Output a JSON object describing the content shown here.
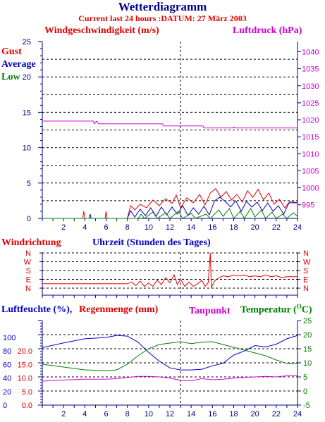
{
  "header": {
    "title": "Wetterdiagramm",
    "subtitle": "Current last 24 hours :DATUM: 27 März 2003"
  },
  "colors": {
    "title": "#00008b",
    "red": "#e00000",
    "blue": "#0000c8",
    "green": "#008000",
    "magenta": "#d000d0",
    "axis": "#000080",
    "grid": "#000000"
  },
  "chart_data": [
    {
      "type": "line",
      "title": "",
      "labels": {
        "left": "Windgeschwindigkeit (m/s)",
        "right": "Luftdruck (hPa)",
        "gust": "Gust",
        "average": "Average",
        "low": "Low"
      },
      "x": {
        "range": [
          0,
          24
        ],
        "ticks": [
          2,
          4,
          6,
          8,
          10,
          12,
          14,
          16,
          18,
          20,
          22,
          24
        ]
      },
      "y_left": {
        "range": [
          0,
          25
        ],
        "ticks": [
          0,
          5,
          10,
          15,
          20,
          25
        ]
      },
      "y_right": {
        "range": [
          991,
          1043
        ],
        "ticks": [
          995,
          1000,
          1005,
          1010,
          1015,
          1020,
          1025,
          1030,
          1035,
          1040
        ]
      },
      "series": [
        {
          "name": "Gust",
          "color": "#e00000",
          "axis": "left",
          "points": [
            [
              0,
              0
            ],
            [
              3.8,
              0
            ],
            [
              3.9,
              1.0
            ],
            [
              4.0,
              0
            ],
            [
              5.9,
              0
            ],
            [
              6.0,
              1.0
            ],
            [
              6.1,
              0
            ],
            [
              8.0,
              0
            ],
            [
              8.3,
              1.8
            ],
            [
              8.7,
              1.2
            ],
            [
              9.2,
              2.0
            ],
            [
              9.8,
              1.5
            ],
            [
              10.4,
              2.6
            ],
            [
              11.0,
              1.8
            ],
            [
              11.6,
              2.8
            ],
            [
              12.2,
              2.1
            ],
            [
              12.6,
              3.3
            ],
            [
              13.0,
              1.5
            ],
            [
              13.6,
              2.9
            ],
            [
              14.2,
              2.2
            ],
            [
              14.8,
              3.4
            ],
            [
              15.3,
              1.9
            ],
            [
              15.8,
              3.6
            ],
            [
              16.3,
              4.2
            ],
            [
              16.8,
              3.0
            ],
            [
              17.3,
              3.8
            ],
            [
              17.8,
              2.6
            ],
            [
              18.3,
              3.4
            ],
            [
              18.8,
              2.3
            ],
            [
              19.3,
              3.9
            ],
            [
              19.8,
              3.0
            ],
            [
              20.3,
              4.1
            ],
            [
              20.8,
              2.6
            ],
            [
              21.3,
              3.6
            ],
            [
              21.8,
              2.0
            ],
            [
              22.3,
              2.7
            ],
            [
              22.8,
              1.5
            ],
            [
              23.3,
              2.4
            ],
            [
              24.0,
              2.2
            ]
          ]
        },
        {
          "name": "Average",
          "color": "#0000c8",
          "axis": "left",
          "points": [
            [
              0,
              0
            ],
            [
              4.4,
              0
            ],
            [
              4.5,
              0.6
            ],
            [
              4.6,
              0
            ],
            [
              8.0,
              0
            ],
            [
              8.3,
              1.1
            ],
            [
              8.7,
              0.2
            ],
            [
              9.2,
              1.3
            ],
            [
              9.7,
              0.4
            ],
            [
              10.2,
              1.5
            ],
            [
              10.7,
              0.3
            ],
            [
              11.2,
              1.6
            ],
            [
              11.7,
              0.5
            ],
            [
              12.2,
              1.6
            ],
            [
              12.7,
              0.6
            ],
            [
              13.2,
              1.8
            ],
            [
              13.7,
              0.4
            ],
            [
              14.2,
              1.5
            ],
            [
              14.7,
              0.6
            ],
            [
              15.2,
              1.7
            ],
            [
              15.7,
              0.5
            ],
            [
              16.2,
              2.5
            ],
            [
              16.7,
              3.0
            ],
            [
              17.2,
              2.4
            ],
            [
              17.7,
              1.6
            ],
            [
              18.2,
              2.5
            ],
            [
              18.7,
              1.0
            ],
            [
              19.2,
              2.4
            ],
            [
              19.7,
              1.6
            ],
            [
              20.2,
              2.3
            ],
            [
              20.7,
              1.1
            ],
            [
              21.2,
              2.2
            ],
            [
              21.7,
              1.0
            ],
            [
              22.2,
              1.8
            ],
            [
              22.7,
              0.6
            ],
            [
              23.2,
              2.2
            ],
            [
              24.0,
              2.2
            ]
          ]
        },
        {
          "name": "Low",
          "color": "#008000",
          "axis": "left",
          "points": [
            [
              0,
              0
            ],
            [
              9.0,
              0
            ],
            [
              9.3,
              0.6
            ],
            [
              9.6,
              0
            ],
            [
              10.4,
              0.9
            ],
            [
              10.8,
              0
            ],
            [
              11.6,
              0.8
            ],
            [
              12.0,
              0
            ],
            [
              12.8,
              1.0
            ],
            [
              13.2,
              0
            ],
            [
              14.0,
              0.7
            ],
            [
              14.4,
              0
            ],
            [
              15.4,
              0.6
            ],
            [
              15.8,
              0
            ],
            [
              16.6,
              1.2
            ],
            [
              17.0,
              0.3
            ],
            [
              17.6,
              1.4
            ],
            [
              18.0,
              0
            ],
            [
              18.6,
              1.0
            ],
            [
              19.0,
              0
            ],
            [
              19.6,
              1.4
            ],
            [
              20.0,
              0.2
            ],
            [
              20.6,
              1.2
            ],
            [
              21.0,
              0
            ],
            [
              21.6,
              0.9
            ],
            [
              22.0,
              0
            ],
            [
              22.6,
              0.6
            ],
            [
              23.0,
              0
            ],
            [
              23.6,
              0.8
            ],
            [
              24.0,
              0.3
            ]
          ]
        },
        {
          "name": "Luftdruck",
          "color": "#d000d0",
          "axis": "right",
          "points": [
            [
              0,
              1019.6
            ],
            [
              4.8,
              1019.6
            ],
            [
              4.9,
              1018.8
            ],
            [
              5.1,
              1019.6
            ],
            [
              5.3,
              1018.8
            ],
            [
              11.3,
              1018.8
            ],
            [
              11.4,
              1018.2
            ],
            [
              15.1,
              1018.2
            ],
            [
              15.2,
              1017.6
            ],
            [
              17.9,
              1017.6
            ],
            [
              18.0,
              1017.9
            ],
            [
              18.1,
              1017.6
            ],
            [
              24.0,
              1017.6
            ]
          ]
        }
      ]
    },
    {
      "type": "line",
      "title": "",
      "labels": {
        "left": "Windrichtung",
        "center": "Uhrzeit (Stunden des Tages)"
      },
      "x": {
        "range": [
          0,
          24
        ]
      },
      "y_categories": [
        "N",
        "W",
        "S",
        "E",
        "N"
      ],
      "series": [
        {
          "name": "Windrichtung",
          "color": "#e00000",
          "points": [
            [
              0,
              0.5
            ],
            [
              8.0,
              0.5
            ],
            [
              8.4,
              0.7
            ],
            [
              8.8,
              0.3
            ],
            [
              9.2,
              0.8
            ],
            [
              9.6,
              0.2
            ],
            [
              10.0,
              0.6
            ],
            [
              10.4,
              0.2
            ],
            [
              10.8,
              0.9
            ],
            [
              11.2,
              0.4
            ],
            [
              11.6,
              1.2
            ],
            [
              12.0,
              0.6
            ],
            [
              12.4,
              1.5
            ],
            [
              12.7,
              0.4
            ],
            [
              13.0,
              1.0
            ],
            [
              13.4,
              0.2
            ],
            [
              13.8,
              0.7
            ],
            [
              14.2,
              0.2
            ],
            [
              14.6,
              0.5
            ],
            [
              15.0,
              0.9
            ],
            [
              15.3,
              0.2
            ],
            [
              15.6,
              0.6
            ],
            [
              15.8,
              4.0
            ],
            [
              15.9,
              0.1
            ],
            [
              16.2,
              0.8
            ],
            [
              16.5,
              1.1
            ],
            [
              17.0,
              1.4
            ],
            [
              17.5,
              1.3
            ],
            [
              18.0,
              1.5
            ],
            [
              18.5,
              1.4
            ],
            [
              19.0,
              1.5
            ],
            [
              19.5,
              1.3
            ],
            [
              20.0,
              1.4
            ],
            [
              20.5,
              1.3
            ],
            [
              21.0,
              1.5
            ],
            [
              21.5,
              1.3
            ],
            [
              22.0,
              1.4
            ],
            [
              22.5,
              1.2
            ],
            [
              23.0,
              1.3
            ],
            [
              24.0,
              1.3
            ]
          ]
        }
      ]
    },
    {
      "type": "line",
      "title": "",
      "labels": {
        "left1": "Luftfeuchte (%),",
        "left2": "Regenmenge (mm)",
        "dew": "Taupunkt",
        "right": "Temperatur (",
        "right_unit": "O",
        "right_end": "C)"
      },
      "x": {
        "range": [
          0,
          24
        ],
        "ticks": [
          2,
          4,
          6,
          8,
          10,
          12,
          14,
          16,
          18,
          20,
          22,
          24
        ]
      },
      "y_left_humidity": {
        "range": [
          0,
          125
        ],
        "ticks": [
          0,
          20,
          40,
          60,
          80,
          100
        ]
      },
      "y_left_rain": {
        "range": [
          0,
          25
        ],
        "ticks": [
          "0.0",
          "5.0",
          "10.0",
          "15.0",
          "20.0"
        ]
      },
      "y_right": {
        "range": [
          -5,
          25
        ],
        "ticks": [
          -5,
          0,
          5,
          10,
          15,
          20,
          25
        ]
      },
      "series": [
        {
          "name": "Luftfeuchte",
          "color": "#0000c8",
          "axis": "left",
          "points": [
            [
              0,
              85
            ],
            [
              2,
              92
            ],
            [
              4,
              98
            ],
            [
              6,
              100
            ],
            [
              7,
              103
            ],
            [
              8,
              102
            ],
            [
              9,
              93
            ],
            [
              10,
              78
            ],
            [
              11,
              65
            ],
            [
              12,
              55
            ],
            [
              13,
              52
            ],
            [
              14,
              52
            ],
            [
              15,
              53
            ],
            [
              16,
              58
            ],
            [
              17,
              62
            ],
            [
              18,
              74
            ],
            [
              19,
              80
            ],
            [
              20,
              88
            ],
            [
              21,
              86
            ],
            [
              22,
              90
            ],
            [
              23,
              98
            ],
            [
              24,
              103
            ]
          ]
        },
        {
          "name": "Temperatur",
          "color": "#008000",
          "axis": "right",
          "points": [
            [
              0,
              9.5
            ],
            [
              2,
              8.5
            ],
            [
              4,
              7.5
            ],
            [
              6,
              7.2
            ],
            [
              7,
              7.5
            ],
            [
              8,
              9.5
            ],
            [
              9,
              12.5
            ],
            [
              10,
              15.0
            ],
            [
              11,
              16.5
            ],
            [
              12,
              17.0
            ],
            [
              13,
              17.5
            ],
            [
              14,
              16.8
            ],
            [
              15,
              17.3
            ],
            [
              16,
              17.5
            ],
            [
              17,
              16.5
            ],
            [
              18,
              15.5
            ],
            [
              19,
              14.5
            ],
            [
              20,
              13.5
            ],
            [
              21,
              12.5
            ],
            [
              22,
              11.0
            ],
            [
              23,
              9.8
            ],
            [
              24,
              9.8
            ]
          ]
        },
        {
          "name": "Taupunkt",
          "color": "#d000d0",
          "axis": "right",
          "points": [
            [
              0,
              3.5
            ],
            [
              2,
              3.9
            ],
            [
              4,
              4.2
            ],
            [
              6,
              4.2
            ],
            [
              7,
              4.4
            ],
            [
              8,
              4.8
            ],
            [
              9,
              5.2
            ],
            [
              10,
              5.2
            ],
            [
              11,
              5.0
            ],
            [
              12,
              4.6
            ],
            [
              13,
              3.8
            ],
            [
              14,
              3.6
            ],
            [
              15,
              4.4
            ],
            [
              16,
              4.0
            ],
            [
              17,
              4.2
            ],
            [
              18,
              4.6
            ],
            [
              19,
              4.8
            ],
            [
              20,
              5.0
            ],
            [
              21,
              5.2
            ],
            [
              22,
              5.0
            ],
            [
              23,
              5.4
            ],
            [
              24,
              5.5
            ]
          ]
        }
      ]
    }
  ]
}
